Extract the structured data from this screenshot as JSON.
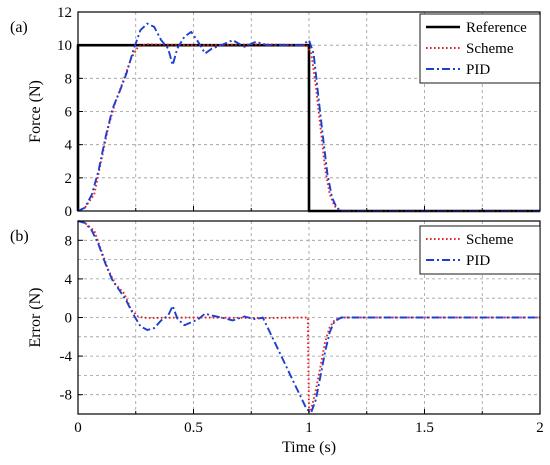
{
  "chart_data": [
    {
      "type": "line",
      "panel_label": "(a)",
      "xlabel": "",
      "ylabel": "Force (N)",
      "xlim": [
        0,
        2
      ],
      "ylim": [
        0,
        12
      ],
      "xticks": [
        "0",
        "0.5",
        "1",
        "1.5",
        "2"
      ],
      "yticks": [
        "0",
        "2",
        "4",
        "6",
        "8",
        "10",
        "12"
      ],
      "grid": true,
      "legend_position": "top-right",
      "series": [
        {
          "name": "Reference",
          "color": "#000000",
          "style": "solid",
          "x": [
            0,
            0,
            1.0,
            1.0,
            2
          ],
          "y": [
            0,
            10,
            10,
            0,
            0
          ]
        },
        {
          "name": "Scheme",
          "color": "#e8202a",
          "style": "dotted",
          "x": [
            0,
            0.03,
            0.07,
            0.1,
            0.13,
            0.16,
            0.2,
            0.23,
            0.26,
            0.28,
            0.3,
            0.5,
            0.8,
            0.99,
            1.01,
            1.03,
            1.05,
            1.07,
            1.09,
            1.11,
            1.13,
            1.15,
            2
          ],
          "y": [
            0,
            0.2,
            1.0,
            3.0,
            5.0,
            6.5,
            8.0,
            9.2,
            9.9,
            10.0,
            10.05,
            10.0,
            10.05,
            10.0,
            9.5,
            7.5,
            5.0,
            2.5,
            1.0,
            0.3,
            0.05,
            0,
            0
          ]
        },
        {
          "name": "PID",
          "color": "#1a3fd1",
          "style": "dashdot",
          "x": [
            0,
            0.03,
            0.06,
            0.09,
            0.12,
            0.15,
            0.18,
            0.21,
            0.24,
            0.27,
            0.3,
            0.33,
            0.36,
            0.39,
            0.41,
            0.43,
            0.46,
            0.49,
            0.52,
            0.55,
            0.58,
            0.62,
            0.67,
            0.72,
            0.77,
            0.82,
            0.9,
            0.97,
            1.0,
            1.02,
            1.04,
            1.06,
            1.08,
            1.1,
            1.12,
            1.14,
            2
          ],
          "y": [
            0,
            0.2,
            1.0,
            2.5,
            4.5,
            6.2,
            7.2,
            8.3,
            9.7,
            10.9,
            11.3,
            11.1,
            10.3,
            9.8,
            8.8,
            9.8,
            10.5,
            10.8,
            10.2,
            9.5,
            9.8,
            10.0,
            10.3,
            9.9,
            10.2,
            10.0,
            10.0,
            10.0,
            10.3,
            9.5,
            7.0,
            4.5,
            2.2,
            0.8,
            0.2,
            0,
            0
          ]
        }
      ]
    },
    {
      "type": "line",
      "panel_label": "(b)",
      "xlabel": "Time (s)",
      "ylabel": "Error (N)",
      "xlim": [
        0,
        2
      ],
      "ylim": [
        -10,
        10
      ],
      "xticks": [
        "0",
        "0.5",
        "1",
        "1.5",
        "2"
      ],
      "yticks": [
        "-8",
        "-4",
        "0",
        "4",
        "8"
      ],
      "yticks_values": [
        -8,
        -4,
        0,
        4,
        8
      ],
      "grid": true,
      "legend_position": "top-right",
      "series": [
        {
          "name": "Scheme",
          "color": "#e8202a",
          "style": "dotted",
          "x": [
            0,
            0.03,
            0.07,
            0.1,
            0.13,
            0.16,
            0.2,
            0.23,
            0.26,
            0.28,
            0.3,
            0.5,
            0.8,
            0.995,
            1.0,
            1.01,
            1.03,
            1.05,
            1.07,
            1.09,
            1.11,
            1.13,
            1.15,
            2
          ],
          "y": [
            10,
            9.8,
            9.0,
            7.0,
            5.0,
            3.5,
            2.5,
            0.8,
            0.1,
            0,
            -0.05,
            0,
            -0.05,
            0,
            -9.8,
            -9.5,
            -7.5,
            -5.0,
            -2.5,
            -1.0,
            -0.3,
            -0.05,
            0,
            0
          ]
        },
        {
          "name": "PID",
          "color": "#1a3fd1",
          "style": "dashdot",
          "x": [
            0,
            0.03,
            0.06,
            0.09,
            0.12,
            0.15,
            0.18,
            0.21,
            0.24,
            0.27,
            0.3,
            0.33,
            0.36,
            0.39,
            0.41,
            0.43,
            0.46,
            0.49,
            0.52,
            0.55,
            0.58,
            0.62,
            0.67,
            0.72,
            0.77,
            0.8,
            0.85,
            0.9,
            0.95,
            0.99,
            1.01,
            1.03,
            1.05,
            1.07,
            1.09,
            1.11,
            1.14,
            2
          ],
          "y": [
            10,
            9.8,
            9.0,
            7.5,
            5.5,
            3.8,
            2.8,
            1.7,
            0.3,
            -0.9,
            -1.3,
            -1.1,
            -0.3,
            0.2,
            1.2,
            -0.1,
            -0.8,
            -0.5,
            -0.2,
            0.4,
            0.2,
            0,
            -0.3,
            0.1,
            -0.2,
            0,
            -2.5,
            -5.0,
            -7.5,
            -9.5,
            -9.8,
            -8.5,
            -6.0,
            -3.5,
            -1.5,
            -0.4,
            0,
            0
          ]
        }
      ]
    }
  ],
  "x_axis_title": "Time (s)"
}
